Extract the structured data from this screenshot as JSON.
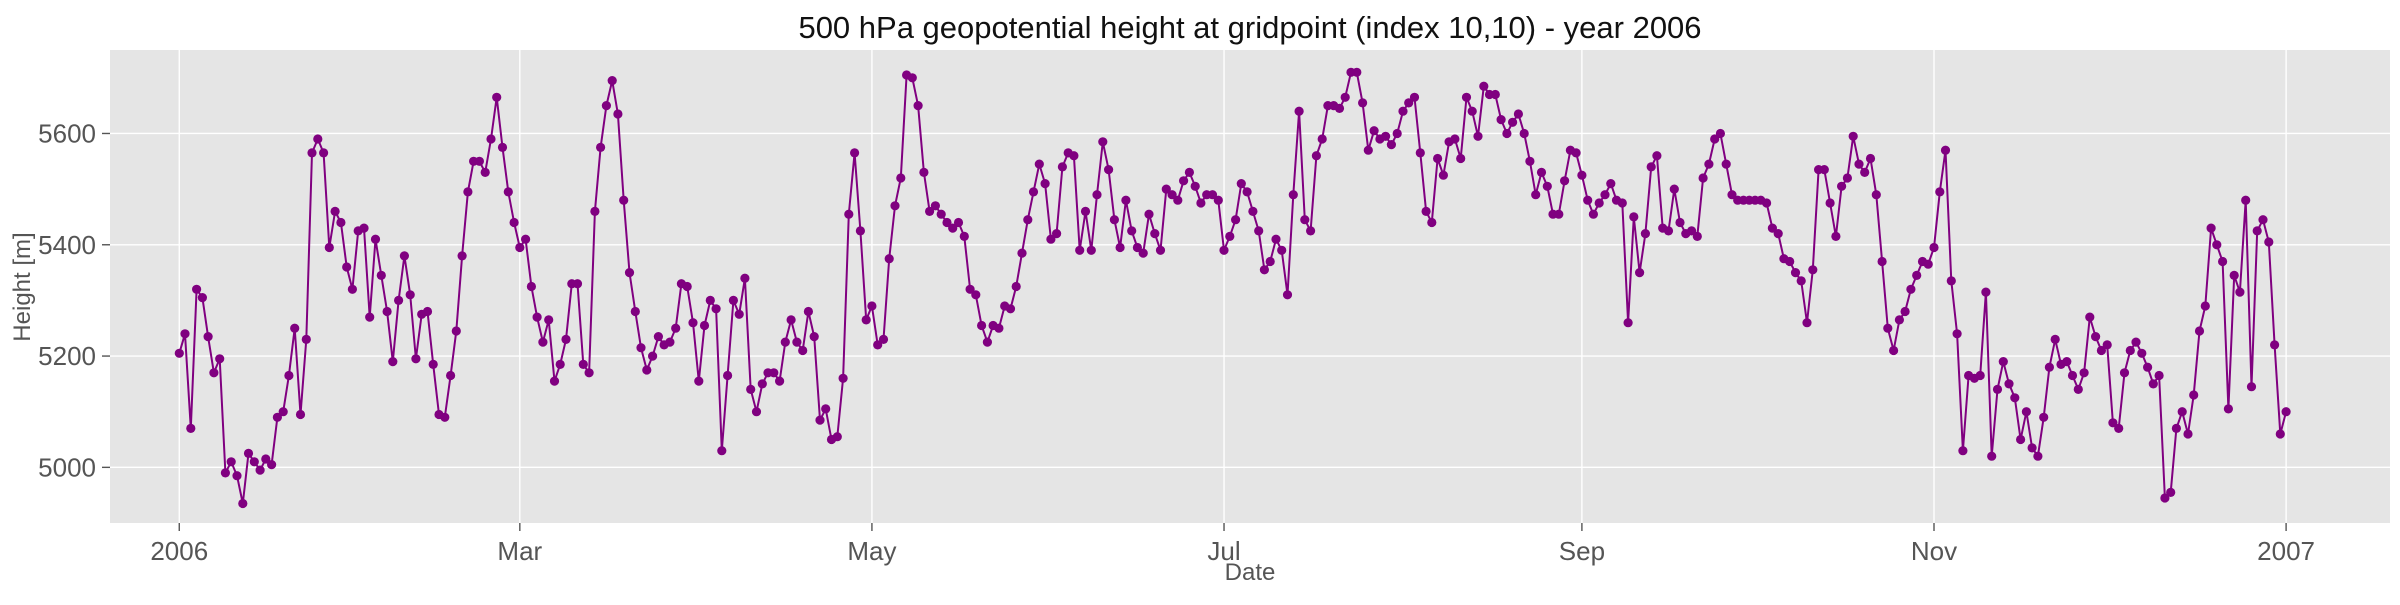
{
  "chart_data": {
    "type": "line",
    "title": "500 hPa geopotential height at gridpoint (index 10,10) - year 2006",
    "xlabel": "Date",
    "ylabel": "Height [m]",
    "xlim": [
      "2005-12-20",
      "2007-01-19"
    ],
    "ylim": [
      4900,
      5750
    ],
    "xticks": [
      {
        "date": "2006-01-01",
        "label": "2006"
      },
      {
        "date": "2006-03-01",
        "label": "Mar"
      },
      {
        "date": "2006-05-01",
        "label": "May"
      },
      {
        "date": "2006-07-01",
        "label": "Jul"
      },
      {
        "date": "2006-09-01",
        "label": "Sep"
      },
      {
        "date": "2006-11-01",
        "label": "Nov"
      },
      {
        "date": "2007-01-01",
        "label": "2007"
      }
    ],
    "yticks": [
      5000,
      5200,
      5400,
      5600
    ],
    "grid": true,
    "colors": {
      "series": "#800080",
      "panel": "#e5e5e5",
      "grid": "#ffffff"
    },
    "series": [
      {
        "start_date": "2006-01-01",
        "step_days": 1,
        "values": [
          5205,
          5240,
          5070,
          5320,
          5305,
          5235,
          5170,
          5195,
          4990,
          5010,
          4985,
          4935,
          5025,
          5010,
          4995,
          5015,
          5005,
          5090,
          5100,
          5165,
          5250,
          5095,
          5230,
          5565,
          5590,
          5565,
          5395,
          5460,
          5440,
          5360,
          5320,
          5425,
          5430,
          5270,
          5410,
          5345,
          5280,
          5190,
          5300,
          5380,
          5310,
          5195,
          5275,
          5280,
          5185,
          5095,
          5090,
          5165,
          5245,
          5380,
          5495,
          5550,
          5550,
          5530,
          5590,
          5665,
          5575,
          5495,
          5440,
          5395,
          5410,
          5325,
          5270,
          5225,
          5265,
          5155,
          5185,
          5230,
          5330,
          5330,
          5185,
          5170,
          5460,
          5575,
          5650,
          5695,
          5635,
          5480,
          5350,
          5280,
          5215,
          5175,
          5200,
          5235,
          5220,
          5225,
          5250,
          5330,
          5325,
          5260,
          5155,
          5255,
          5300,
          5285,
          5030,
          5165,
          5300,
          5275,
          5340,
          5140,
          5100,
          5150,
          5170,
          5170,
          5155,
          5225,
          5265,
          5225,
          5210,
          5280,
          5235,
          5085,
          5105,
          5050,
          5055,
          5160,
          5455,
          5565,
          5425,
          5265,
          5290,
          5220,
          5230,
          5375,
          5470,
          5520,
          5705,
          5700,
          5650,
          5530,
          5460,
          5470,
          5455,
          5440,
          5430,
          5440,
          5415,
          5320,
          5310,
          5255,
          5225,
          5255,
          5250,
          5290,
          5285,
          5325,
          5385,
          5445,
          5495,
          5545,
          5510,
          5410,
          5420,
          5540,
          5565,
          5560,
          5390,
          5460,
          5390,
          5490,
          5585,
          5535,
          5445,
          5395,
          5480,
          5425,
          5395,
          5385,
          5455,
          5420,
          5390,
          5500,
          5490,
          5480,
          5515,
          5530,
          5505,
          5475,
          5490,
          5490,
          5480,
          5390,
          5415,
          5445,
          5510,
          5495,
          5460,
          5425,
          5355,
          5370,
          5410,
          5390,
          5310,
          5490,
          5640,
          5445,
          5425,
          5560,
          5590,
          5650,
          5650,
          5645,
          5665,
          5710,
          5710,
          5655,
          5570,
          5605,
          5590,
          5595,
          5580,
          5600,
          5640,
          5655,
          5665,
          5565,
          5460,
          5440,
          5555,
          5525,
          5585,
          5590,
          5555,
          5665,
          5640,
          5595,
          5685,
          5670,
          5670,
          5625,
          5600,
          5620,
          5635,
          5600,
          5550,
          5490,
          5530,
          5505,
          5455,
          5455,
          5515,
          5570,
          5565,
          5525,
          5480,
          5455,
          5475,
          5490,
          5510,
          5480,
          5475,
          5260,
          5450,
          5350,
          5420,
          5540,
          5560,
          5430,
          5425,
          5500,
          5440,
          5420,
          5425,
          5415,
          5520,
          5545,
          5590,
          5600,
          5545,
          5490,
          5480,
          5480,
          5480,
          5480,
          5480,
          5475,
          5430,
          5420,
          5375,
          5370,
          5350,
          5335,
          5260,
          5355,
          5535,
          5535,
          5475,
          5415,
          5505,
          5520,
          5595,
          5545,
          5530,
          5555,
          5490,
          5370,
          5250,
          5210,
          5265,
          5280,
          5320,
          5345,
          5370,
          5365,
          5395,
          5495,
          5570,
          5335,
          5240,
          5030,
          5165,
          5160,
          5165,
          5315,
          5020,
          5140,
          5190,
          5150,
          5125,
          5050,
          5100,
          5035,
          5020,
          5090,
          5180,
          5230,
          5185,
          5190,
          5165,
          5140,
          5170,
          5270,
          5235,
          5210,
          5220,
          5080,
          5070,
          5170,
          5210,
          5225,
          5205,
          5180,
          5150,
          5165,
          4945,
          4955,
          5070,
          5100,
          5060,
          5130,
          5245,
          5290,
          5430,
          5400,
          5370,
          5105,
          5345,
          5315,
          5480,
          5145,
          5425,
          5445,
          5405,
          5220,
          5060,
          5100
        ]
      }
    ]
  }
}
